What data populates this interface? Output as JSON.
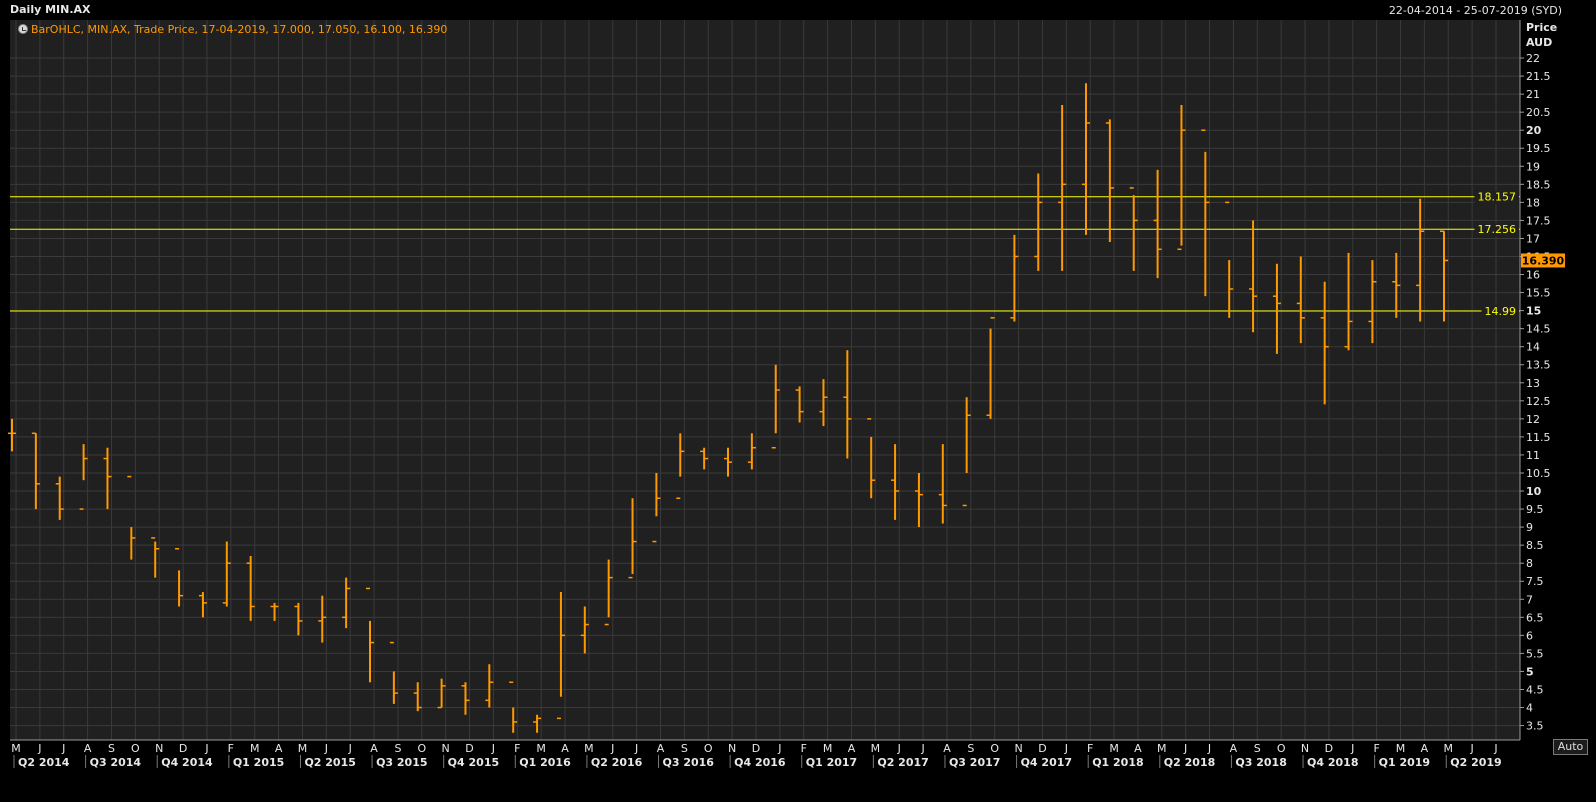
{
  "window": {
    "title": "Daily MIN.AX",
    "date_range": "22-04-2014 - 25-07-2019 (SYD)"
  },
  "legend": {
    "icon": "legend-toggle-icon",
    "text": "BarOHLC, MIN.AX, Trade Price, 17-04-2019, 17.000, 17.050, 16.100, 16.390"
  },
  "axis": {
    "price_label": "Price",
    "currency_label": "AUD",
    "auto_button": "Auto"
  },
  "colors": {
    "background": "#000000",
    "plot_background": "#202020",
    "grid": "#3a3a3a",
    "price_series": "#ff9900",
    "horizontal_lines": "#ffff00",
    "axis_text": "#e8e8e8"
  },
  "chart_data": {
    "type": "bar",
    "subtype": "ohlc",
    "symbol": "MIN.AX",
    "field": "Trade Price",
    "currency": "AUD",
    "last_price": 16.39,
    "last_price_label": "16.390",
    "last_bar": {
      "date": "17-04-2019",
      "open": 17.0,
      "high": 17.05,
      "low": 16.1,
      "close": 16.39
    },
    "ylim": [
      3.1,
      22.5
    ],
    "y_ticks": [
      3.5,
      4,
      4.5,
      5,
      5.5,
      6,
      6.5,
      7,
      7.5,
      8,
      8.5,
      9,
      9.5,
      10,
      10.5,
      11,
      11.5,
      12,
      12.5,
      13,
      13.5,
      14,
      14.5,
      15,
      15.5,
      16,
      16.5,
      17,
      17.5,
      18,
      18.5,
      19,
      19.5,
      20,
      20.5,
      21,
      21.5,
      22
    ],
    "y_tick_labels": [
      "3.5",
      "4",
      "4.5",
      "5",
      "5.5",
      "6",
      "6.5",
      "7",
      "7.5",
      "8",
      "8.5",
      "9",
      "9.5",
      "10",
      "10.5",
      "11",
      "11.5",
      "12",
      "12.5",
      "13",
      "13.5",
      "14",
      "14.5",
      "15",
      "15.5",
      "16",
      "16.5",
      "17",
      "17.5",
      "18",
      "18.5",
      "19",
      "19.5",
      "20",
      "20.5",
      "21",
      "21.5",
      "22"
    ],
    "y_bold_ticks": [
      5,
      10,
      15,
      20
    ],
    "x_month_labels": [
      "M",
      "J",
      "J",
      "A",
      "S",
      "O",
      "N",
      "D",
      "J",
      "F",
      "M",
      "A",
      "M",
      "J",
      "J",
      "A",
      "S",
      "O",
      "N",
      "D",
      "J",
      "F",
      "M",
      "A",
      "M",
      "J",
      "J",
      "A",
      "S",
      "O",
      "N",
      "D",
      "J",
      "F",
      "M",
      "A",
      "M",
      "J",
      "J",
      "A",
      "S",
      "O",
      "N",
      "D",
      "J",
      "F",
      "M",
      "A",
      "M",
      "J",
      "J",
      "A",
      "S",
      "O",
      "N",
      "D",
      "J",
      "F",
      "M",
      "A",
      "M",
      "J",
      "J"
    ],
    "x_quarter_labels": [
      "Q2 2014",
      "Q3 2014",
      "Q4 2014",
      "Q1 2015",
      "Q2 2015",
      "Q3 2015",
      "Q4 2015",
      "Q1 2016",
      "Q2 2016",
      "Q3 2016",
      "Q4 2016",
      "Q1 2017",
      "Q2 2017",
      "Q3 2017",
      "Q4 2017",
      "Q1 2018",
      "Q2 2018",
      "Q3 2018",
      "Q4 2018",
      "Q1 2019",
      "Q2 2019"
    ],
    "horizontal_lines": [
      {
        "value": 18.157,
        "label": "18.157"
      },
      {
        "value": 17.256,
        "label": "17.256"
      },
      {
        "value": 14.99,
        "label": "14.99"
      }
    ],
    "series": [
      {
        "x": [
          "2014-04",
          "2014-05",
          "2014-06",
          "2014-07",
          "2014-08",
          "2014-09",
          "2014-10",
          "2014-11",
          "2014-12",
          "2015-01",
          "2015-02",
          "2015-03",
          "2015-04",
          "2015-05",
          "2015-06",
          "2015-07",
          "2015-08",
          "2015-09",
          "2015-10",
          "2015-11",
          "2015-12",
          "2016-01",
          "2016-02",
          "2016-03",
          "2016-04",
          "2016-05",
          "2016-06",
          "2016-07",
          "2016-08",
          "2016-09",
          "2016-10",
          "2016-11",
          "2016-12",
          "2017-01",
          "2017-02",
          "2017-03",
          "2017-04",
          "2017-05",
          "2017-06",
          "2017-07",
          "2017-08",
          "2017-09",
          "2017-10",
          "2017-11",
          "2017-12",
          "2018-01",
          "2018-02",
          "2018-03",
          "2018-04",
          "2018-05",
          "2018-06",
          "2018-07",
          "2018-08",
          "2018-09",
          "2018-10",
          "2018-11",
          "2018-12",
          "2019-01",
          "2019-02",
          "2019-03",
          "2019-04"
        ],
        "high": [
          12.0,
          11.6,
          10.4,
          11.3,
          11.2,
          9.0,
          8.6,
          7.8,
          7.2,
          8.6,
          8.2,
          6.9,
          6.9,
          7.1,
          7.6,
          6.4,
          5.0,
          4.7,
          4.8,
          4.7,
          5.2,
          4.0,
          3.8,
          7.2,
          6.8,
          8.1,
          9.8,
          10.5,
          11.6,
          11.2,
          11.2,
          11.6,
          13.5,
          12.9,
          13.1,
          13.9,
          11.5,
          11.3,
          10.5,
          11.3,
          12.6,
          14.5,
          17.1,
          18.8,
          20.7,
          21.3,
          20.3,
          18.2,
          18.9,
          20.7,
          19.4,
          16.4,
          17.5,
          16.3,
          16.5,
          15.8,
          16.6,
          16.4,
          16.6,
          18.1,
          17.2
        ],
        "low": [
          11.1,
          9.5,
          9.2,
          10.3,
          9.5,
          8.1,
          7.6,
          6.8,
          6.5,
          6.8,
          6.4,
          6.4,
          6.0,
          5.8,
          6.2,
          4.7,
          4.1,
          3.9,
          4.0,
          3.8,
          4.0,
          3.3,
          3.3,
          4.3,
          5.5,
          6.5,
          7.7,
          9.3,
          10.4,
          10.6,
          10.4,
          10.6,
          11.6,
          11.9,
          11.8,
          10.9,
          9.8,
          9.2,
          9.0,
          9.1,
          10.5,
          12.0,
          14.7,
          16.1,
          16.1,
          17.1,
          16.9,
          16.1,
          15.9,
          16.8,
          15.4,
          14.8,
          14.4,
          13.8,
          14.1,
          12.4,
          13.9,
          14.1,
          14.8,
          14.7,
          14.7
        ],
        "close": [
          11.6,
          10.2,
          9.5,
          10.9,
          10.4,
          8.7,
          8.4,
          7.1,
          6.9,
          8.0,
          6.8,
          6.8,
          6.4,
          6.5,
          7.3,
          5.8,
          4.4,
          4.0,
          4.6,
          4.2,
          4.7,
          3.6,
          3.7,
          6.0,
          6.3,
          7.6,
          8.6,
          9.8,
          11.1,
          10.9,
          10.8,
          11.2,
          12.8,
          12.2,
          12.6,
          12.0,
          10.3,
          10.0,
          9.9,
          9.6,
          12.1,
          14.8,
          16.5,
          18.0,
          18.5,
          20.2,
          18.4,
          17.5,
          16.7,
          20.0,
          18.0,
          15.6,
          15.4,
          15.2,
          14.8,
          14.0,
          14.7,
          15.8,
          15.7,
          17.2,
          16.39
        ]
      }
    ]
  }
}
